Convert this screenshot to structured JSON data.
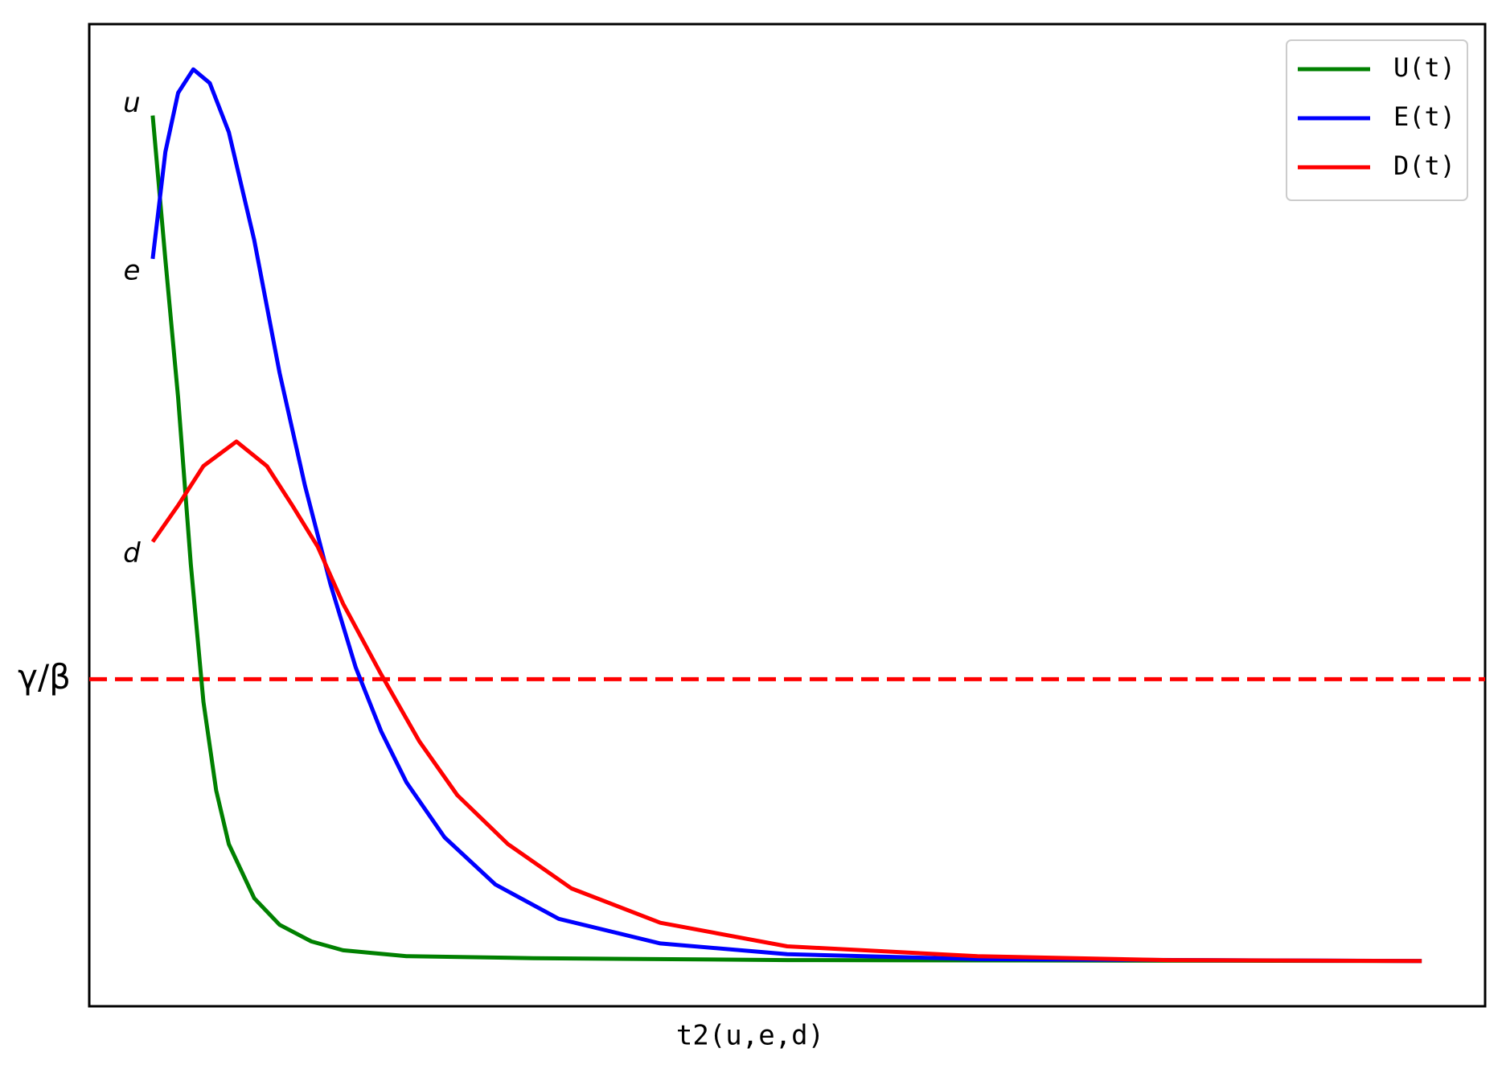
{
  "chart_data": {
    "type": "line",
    "xlabel": "t2(u,e,d)",
    "xlim": [
      -0.5,
      10.5
    ],
    "ylim": [
      0,
      1
    ],
    "yticks": [
      {
        "value": 0.333,
        "label": "γ/β"
      }
    ],
    "reference_line": {
      "color": "#ff0000",
      "style": "dashed"
    },
    "legend": "upper right",
    "series": [
      {
        "name": "U(t)",
        "label": "u",
        "color": "#008000",
        "x": [
          0,
          0.1,
          0.2,
          0.3,
          0.4,
          0.5,
          0.6,
          0.8,
          1.0,
          1.25,
          1.5,
          2,
          3,
          5,
          10
        ],
        "values": [
          0.907,
          0.76,
          0.62,
          0.45,
          0.31,
          0.22,
          0.165,
          0.11,
          0.083,
          0.066,
          0.057,
          0.051,
          0.049,
          0.047,
          0.046
        ]
      },
      {
        "name": "E(t)",
        "label": "e",
        "color": "#0000ff",
        "x": [
          0,
          0.1,
          0.2,
          0.32,
          0.45,
          0.6,
          0.8,
          1.0,
          1.2,
          1.4,
          1.6,
          1.8,
          2.0,
          2.3,
          2.7,
          3.2,
          4,
          5,
          6.5,
          10
        ],
        "values": [
          0.761,
          0.87,
          0.93,
          0.954,
          0.94,
          0.89,
          0.78,
          0.645,
          0.53,
          0.43,
          0.345,
          0.28,
          0.228,
          0.172,
          0.124,
          0.089,
          0.064,
          0.053,
          0.048,
          0.046
        ]
      },
      {
        "name": "D(t)",
        "label": "d",
        "color": "#ff0000",
        "x": [
          0,
          0.2,
          0.4,
          0.66,
          0.9,
          1.1,
          1.3,
          1.5,
          1.8,
          2.1,
          2.4,
          2.8,
          3.3,
          4,
          5,
          6.5,
          8,
          10
        ],
        "values": [
          0.473,
          0.51,
          0.55,
          0.575,
          0.55,
          0.51,
          0.468,
          0.41,
          0.338,
          0.27,
          0.215,
          0.165,
          0.12,
          0.085,
          0.061,
          0.051,
          0.047,
          0.046
        ]
      }
    ]
  }
}
